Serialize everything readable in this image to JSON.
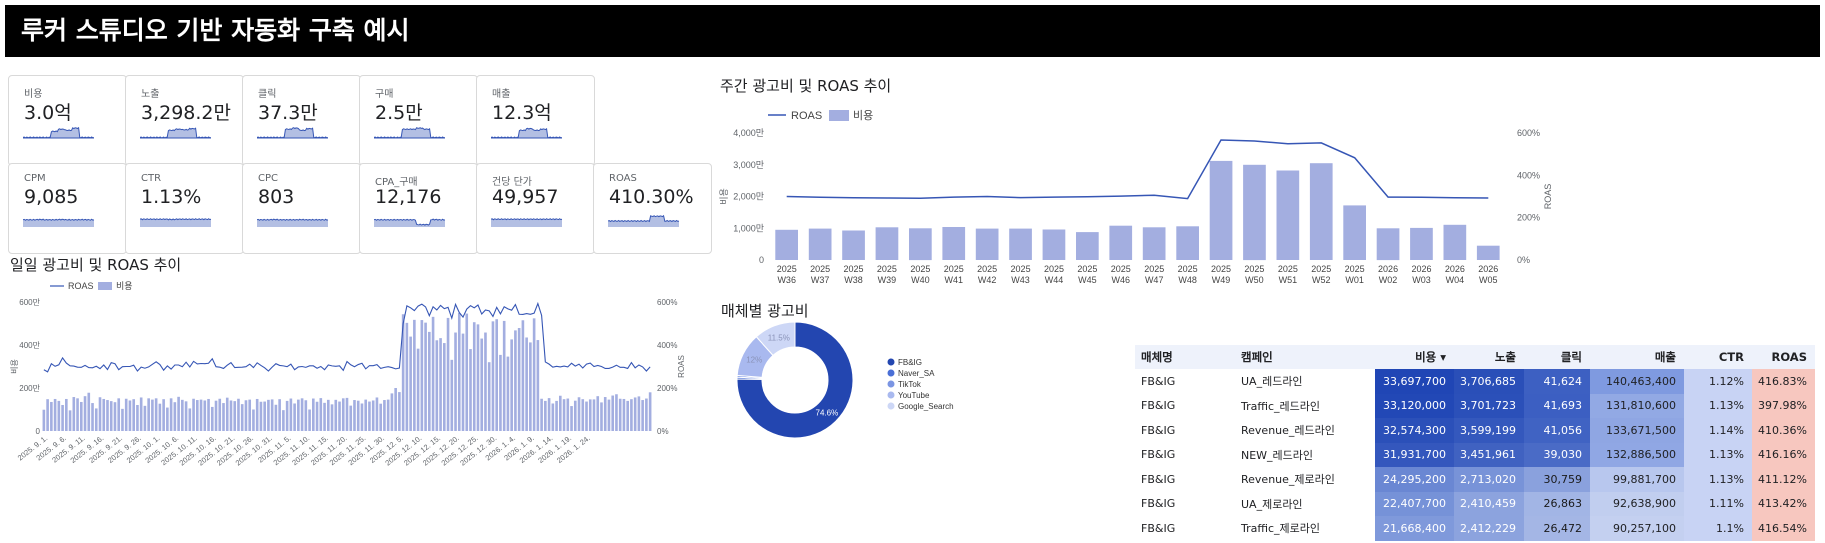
{
  "header": {
    "title": "루커 스튜디오 기반 자동화 구축 예시"
  },
  "kpis": [
    {
      "label": "비용",
      "value": "3.0억",
      "spark": [
        3,
        3,
        3,
        3,
        3,
        3,
        3,
        3,
        3,
        3,
        3,
        3,
        3,
        3,
        3,
        3,
        3,
        3,
        3,
        3,
        3,
        3,
        3,
        3,
        3,
        3,
        3,
        3,
        3,
        3,
        3,
        3,
        3,
        3,
        3,
        3,
        3,
        3,
        3,
        3,
        3,
        3,
        3,
        3,
        3,
        3,
        3,
        3,
        3,
        3,
        3,
        3,
        3,
        3,
        3,
        3,
        3,
        3,
        3,
        3,
        3,
        3,
        3,
        3,
        3,
        3,
        3,
        3,
        3,
        3,
        3,
        3,
        3,
        3,
        3,
        3,
        3,
        3,
        3,
        3,
        3,
        3,
        3,
        3,
        3,
        3,
        3,
        3,
        3,
        3,
        3,
        3,
        3,
        3,
        3,
        3,
        3,
        3,
        3,
        3,
        3,
        3,
        3,
        3,
        3,
        3,
        3,
        3,
        3,
        3,
        3,
        3,
        3,
        3,
        3,
        3,
        3,
        3,
        3,
        3,
        3,
        3,
        3,
        3,
        3,
        3,
        3,
        3,
        3,
        3,
        3,
        3,
        3,
        3,
        3,
        3,
        3,
        3,
        3,
        3,
        3,
        3,
        3,
        3,
        3,
        3,
        3,
        3,
        3,
        3,
        3,
        3
      ]
    },
    {
      "label": "노출",
      "value": "3,298.2만"
    },
    {
      "label": "클릭",
      "value": "37.3만"
    },
    {
      "label": "구매",
      "value": "2.5만"
    },
    {
      "label": "매출",
      "value": "12.3억"
    },
    {
      "label": "CPM",
      "value": "9,085"
    },
    {
      "label": "CTR",
      "value": "1.13%"
    },
    {
      "label": "CPC",
      "value": "803"
    },
    {
      "label": "CPA_구매",
      "value": "12,176"
    },
    {
      "label": "건당 단가",
      "value": "49,957"
    },
    {
      "label": "ROAS",
      "value": "410.30%"
    }
  ],
  "daily": {
    "title": "일일 광고비 및 ROAS 추이",
    "legend_roas": "ROAS",
    "legend_cost": "비용",
    "y_left_label": "비용",
    "y_right_label": "ROAS",
    "y_left_ticks": [
      "0",
      "200만",
      "400만",
      "600만"
    ],
    "y_right_ticks": [
      "0%",
      "200%",
      "400%",
      "600%"
    ],
    "x_ticks": [
      "2025. 9. 1.",
      "2025. 9. 6.",
      "2025. 9. 11.",
      "2025. 9. 16.",
      "2025. 9. 21.",
      "2025. 9. 26.",
      "2025. 10. 1.",
      "2025. 10. 6.",
      "2025. 10. 11.",
      "2025. 10. 16.",
      "2025. 10. 21.",
      "2025. 10. 26.",
      "2025. 10. 31.",
      "2025. 11. 5.",
      "2025. 11. 10.",
      "2025. 11. 15.",
      "2025. 11. 20.",
      "2025. 11. 25.",
      "2025. 11. 30.",
      "2025. 12. 5.",
      "2025. 12. 10.",
      "2025. 12. 15.",
      "2025. 12. 20.",
      "2025. 12. 25.",
      "2025. 12. 30.",
      "2026. 1. 4.",
      "2026. 1. 9.",
      "2026. 1. 14.",
      "2026. 1. 19.",
      "2026. 1. 24."
    ]
  },
  "weekly": {
    "title": "주간 광고비 및 ROAS 추이",
    "legend_roas": "ROAS",
    "legend_cost": "비용",
    "y_left_label": "비용",
    "y_right_label": "ROAS",
    "y_left_ticks": [
      "0",
      "1,000만",
      "2,000만",
      "3,000만",
      "4,000만"
    ],
    "y_right_ticks": [
      "0%",
      "200%",
      "400%",
      "600%"
    ]
  },
  "donut": {
    "title": "매체별 광고비",
    "labels": [
      "FB&IG",
      "Naver_SA",
      "TikTok",
      "YouTube",
      "Google_Search"
    ],
    "colors": [
      "#2346b0",
      "#4a6fd6",
      "#7b95e3",
      "#a9b9ef",
      "#cdd7f6"
    ],
    "slice_labels": [
      "74.6%",
      "12%",
      "11.5%"
    ]
  },
  "chart_data": [
    {
      "type": "line",
      "title": "일일 광고비 및 ROAS 추이",
      "series": [
        {
          "name": "비용",
          "type": "bar",
          "values": [
            99,
            148,
            135,
            149,
            140,
            121,
            149,
            96,
            158,
            152,
            135,
            162,
            178,
            130,
            105,
            157,
            149,
            144,
            139,
            134,
            152,
            103,
            150,
            142,
            148,
            121,
            156,
            117,
            152,
            146,
            152,
            127,
            148,
            109,
            152,
            134,
            159,
            145,
            138,
            105,
            150,
            144,
            146,
            142,
            149,
            112,
            141,
            150,
            130,
            155,
            142,
            139,
            150,
            125,
            143,
            146,
            100,
            149,
            136,
            137,
            145,
            147,
            122,
            148,
            97,
            140,
            151,
            128,
            146,
            152,
            143,
            100,
            151,
            136,
            153,
            131,
            145,
            124,
            145,
            137,
            152,
            154,
            118,
            144,
            141,
            128,
            146,
            137,
            142,
            156,
            127,
            144,
            146,
            175,
            200,
            181,
            543,
            503,
            439,
            517,
            383,
            516,
            504,
            461,
            531,
            422,
            432,
            409,
            526,
            331,
            458,
            549,
            453,
            546,
            381,
            506,
            496,
            430,
            458,
            320,
            510,
            520,
            354,
            512,
            346,
            426,
            468,
            479,
            515,
            435,
            412,
            524,
            423,
            150,
            140,
            153,
            128,
            140,
            164,
            148,
            151,
            116,
            141,
            157,
            148,
            137,
            147,
            147,
            162,
            133,
            158,
            146,
            165,
            171,
            150,
            149,
            140,
            148,
            156,
            161,
            144,
            151,
            180
          ]
        },
        {
          "name": "ROAS",
          "type": "line",
          "values": [
            285,
            275,
            313,
            301,
            308,
            340,
            316,
            303,
            302,
            297,
            296,
            305,
            295,
            294,
            301,
            290,
            307,
            286,
            318,
            313,
            285,
            299,
            300,
            300,
            306,
            279,
            297,
            292,
            298,
            310,
            322,
            309,
            283,
            303,
            288,
            307,
            307,
            299,
            320,
            298,
            324,
            312,
            314,
            313,
            315,
            336,
            299,
            297,
            291,
            306,
            318,
            295,
            296,
            297,
            299,
            311,
            295,
            317,
            305,
            294,
            279,
            297,
            313,
            305,
            303,
            299,
            311,
            285,
            298,
            300,
            296,
            303,
            303,
            292,
            300,
            285,
            307,
            303,
            301,
            303,
            282,
            323,
            308,
            299,
            309,
            315,
            289,
            304,
            304,
            309,
            291,
            296,
            299,
            295,
            289,
            293,
            499,
            582,
            573,
            560,
            581,
            590,
            577,
            536,
            578,
            563,
            584,
            569,
            575,
            525,
            589,
            551,
            530,
            567,
            583,
            573,
            586,
            544,
            563,
            559,
            533,
            575,
            545,
            578,
            568,
            562,
            588,
            543,
            542,
            546,
            543,
            548,
            593,
            538,
            321,
            311,
            297,
            301,
            298,
            302,
            298,
            315,
            302,
            311,
            293,
            311,
            316,
            300,
            305,
            300,
            291,
            291,
            297,
            306,
            296,
            296,
            291,
            318,
            294,
            307,
            298,
            279,
            298
          ]
        }
      ],
      "ylim": [
        0,
        600
      ],
      "y2lim": [
        0,
        600
      ],
      "ylabel": "비용",
      "y2label": "ROAS"
    },
    {
      "type": "bar",
      "title": "주간 광고비 및 ROAS 추이",
      "categories": [
        "2025 W36",
        "2025 W37",
        "2025 W38",
        "2025 W39",
        "2025 W40",
        "2025 W41",
        "2025 W42",
        "2025 W43",
        "2025 W44",
        "2025 W45",
        "2025 W46",
        "2025 W47",
        "2025 W48",
        "2025 W49",
        "2025 W50",
        "2025 W51",
        "2025 W52",
        "2025 W01",
        "2026 W02",
        "2026 W03",
        "2026 W04",
        "2026 W05"
      ],
      "series": [
        {
          "name": "비용",
          "values": [
            950,
            990,
            930,
            1030,
            1000,
            1040,
            990,
            990,
            960,
            880,
            1080,
            1030,
            1060,
            3120,
            3000,
            2820,
            3050,
            1720,
            1000,
            1010,
            1110,
            450
          ]
        },
        {
          "name": "ROAS",
          "values": [
            300,
            296,
            294,
            293,
            292,
            297,
            300,
            295,
            297,
            299,
            302,
            306,
            290,
            567,
            562,
            549,
            553,
            483,
            297,
            296,
            294,
            293
          ]
        }
      ],
      "ylim": [
        0,
        4000
      ],
      "y2lim": [
        0,
        600
      ],
      "ylabel": "비용",
      "y2label": "ROAS"
    },
    {
      "type": "pie",
      "title": "매체별 광고비",
      "categories": [
        "FB&IG",
        "Naver_SA",
        "TikTok",
        "YouTube",
        "Google_Search"
      ],
      "values": [
        74.6,
        0.5,
        0.5,
        12,
        11.5
      ]
    },
    {
      "type": "table",
      "columns": [
        "매체명",
        "캠페인",
        "비용 ▾",
        "노출",
        "클릭",
        "매출",
        "CTR",
        "ROAS"
      ],
      "rows": [
        [
          "FB&IG",
          "UA_레드라인",
          "33,697,700",
          "3,706,685",
          "41,624",
          "140,463,400",
          "1.12%",
          "416.83%"
        ],
        [
          "FB&IG",
          "Traffic_레드라인",
          "33,120,000",
          "3,701,723",
          "41,693",
          "131,810,600",
          "1.13%",
          "397.98%"
        ],
        [
          "FB&IG",
          "Revenue_레드라인",
          "32,574,300",
          "3,599,199",
          "41,056",
          "133,671,500",
          "1.14%",
          "410.36%"
        ],
        [
          "FB&IG",
          "NEW_레드라인",
          "31,931,700",
          "3,451,961",
          "39,030",
          "132,886,500",
          "1.13%",
          "416.16%"
        ],
        [
          "FB&IG",
          "Revenue_제로라인",
          "24,295,200",
          "2,713,020",
          "30,759",
          "99,881,700",
          "1.13%",
          "411.12%"
        ],
        [
          "FB&IG",
          "UA_제로라인",
          "22,407,700",
          "2,410,459",
          "26,863",
          "92,638,900",
          "1.11%",
          "413.42%"
        ],
        [
          "FB&IG",
          "Traffic_제로라인",
          "21,668,400",
          "2,412,229",
          "26,472",
          "90,257,100",
          "1.1%",
          "416.54%"
        ]
      ],
      "cell_colors": {
        "cost": [
          "#2046b5",
          "#2248b6",
          "#2b50b9",
          "#3457bd",
          "#6a87d3",
          "#7692d8",
          "#7f99db"
        ],
        "impr": [
          "#2a4fb8",
          "#2b50b9",
          "#3458bd",
          "#4062c1",
          "#7893d8",
          "#8ca3de",
          "#8ca3de"
        ],
        "click": [
          "#3d60c2",
          "#3c5fc2",
          "#4063c3",
          "#4a6bc6",
          "#8aa1dd",
          "#a2b5e5",
          "#a4b6e5"
        ],
        "rev": [
          "#7f9ae0",
          "#92a9e4",
          "#8fa6e3",
          "#90a7e4",
          "#b8c7ee",
          "#c1ceef",
          "#c4d0f0"
        ],
        "ctr": "#c8d3f4",
        "roas": "#f7c7bf"
      }
    }
  ]
}
